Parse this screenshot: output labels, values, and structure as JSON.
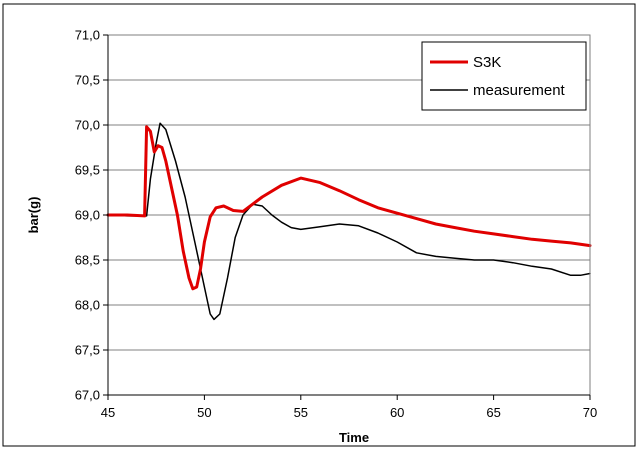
{
  "chart_data": {
    "type": "line",
    "title": "",
    "xlabel": "Time",
    "ylabel": "bar(g)",
    "xlim": [
      45,
      70
    ],
    "ylim": [
      67.0,
      71.0
    ],
    "xticks": [
      45,
      50,
      55,
      60,
      65,
      70
    ],
    "yticks": [
      67.0,
      67.5,
      68.0,
      68.5,
      69.0,
      69.5,
      70.0,
      70.5,
      71.0
    ],
    "xtick_labels": [
      "45",
      "50",
      "55",
      "60",
      "65",
      "70"
    ],
    "ytick_labels": [
      "67,0",
      "67,5",
      "68,0",
      "68,5",
      "69,0",
      "69,5",
      "70,0",
      "70,5",
      "71,0"
    ],
    "grid": "horizontal",
    "legend_position": "top-right",
    "series": [
      {
        "name": "S3K",
        "color": "#e00000",
        "points": [
          [
            45,
            69.0
          ],
          [
            46,
            69.0
          ],
          [
            46.9,
            68.99
          ],
          [
            47.0,
            69.98
          ],
          [
            47.2,
            69.93
          ],
          [
            47.4,
            69.7
          ],
          [
            47.6,
            69.77
          ],
          [
            47.8,
            69.75
          ],
          [
            48.0,
            69.6
          ],
          [
            48.3,
            69.3
          ],
          [
            48.6,
            69.0
          ],
          [
            48.9,
            68.6
          ],
          [
            49.2,
            68.3
          ],
          [
            49.4,
            68.18
          ],
          [
            49.6,
            68.2
          ],
          [
            49.8,
            68.4
          ],
          [
            50.0,
            68.7
          ],
          [
            50.3,
            68.98
          ],
          [
            50.6,
            69.08
          ],
          [
            51.0,
            69.1
          ],
          [
            51.5,
            69.05
          ],
          [
            52.0,
            69.04
          ],
          [
            52.5,
            69.12
          ],
          [
            53.0,
            69.2
          ],
          [
            54.0,
            69.33
          ],
          [
            55.0,
            69.41
          ],
          [
            56.0,
            69.36
          ],
          [
            57.0,
            69.27
          ],
          [
            58.0,
            69.17
          ],
          [
            59.0,
            69.08
          ],
          [
            60.0,
            69.02
          ],
          [
            61.0,
            68.96
          ],
          [
            62.0,
            68.9
          ],
          [
            63.0,
            68.86
          ],
          [
            64.0,
            68.82
          ],
          [
            65.0,
            68.79
          ],
          [
            66.0,
            68.76
          ],
          [
            67.0,
            68.73
          ],
          [
            68.0,
            68.71
          ],
          [
            69.0,
            68.69
          ],
          [
            70.0,
            68.66
          ]
        ]
      },
      {
        "name": "measurement",
        "color": "#000000",
        "points": [
          [
            45,
            69.0
          ],
          [
            46,
            68.99
          ],
          [
            47.0,
            68.99
          ],
          [
            47.2,
            69.4
          ],
          [
            47.5,
            69.8
          ],
          [
            47.7,
            70.02
          ],
          [
            48.0,
            69.95
          ],
          [
            48.5,
            69.6
          ],
          [
            49.0,
            69.2
          ],
          [
            49.5,
            68.7
          ],
          [
            50.0,
            68.2
          ],
          [
            50.3,
            67.9
          ],
          [
            50.5,
            67.84
          ],
          [
            50.8,
            67.9
          ],
          [
            51.2,
            68.3
          ],
          [
            51.6,
            68.75
          ],
          [
            52.0,
            69.0
          ],
          [
            52.5,
            69.12
          ],
          [
            53.0,
            69.1
          ],
          [
            53.5,
            69.0
          ],
          [
            54.0,
            68.92
          ],
          [
            54.5,
            68.86
          ],
          [
            55.0,
            68.84
          ],
          [
            56.0,
            68.87
          ],
          [
            57.0,
            68.9
          ],
          [
            58.0,
            68.88
          ],
          [
            59.0,
            68.8
          ],
          [
            60.0,
            68.7
          ],
          [
            61.0,
            68.58
          ],
          [
            62.0,
            68.54
          ],
          [
            63.0,
            68.52
          ],
          [
            64.0,
            68.5
          ],
          [
            65.0,
            68.5
          ],
          [
            66.0,
            68.47
          ],
          [
            67.0,
            68.43
          ],
          [
            68.0,
            68.4
          ],
          [
            69.0,
            68.33
          ],
          [
            69.5,
            68.33
          ],
          [
            70.0,
            68.35
          ]
        ]
      }
    ]
  }
}
